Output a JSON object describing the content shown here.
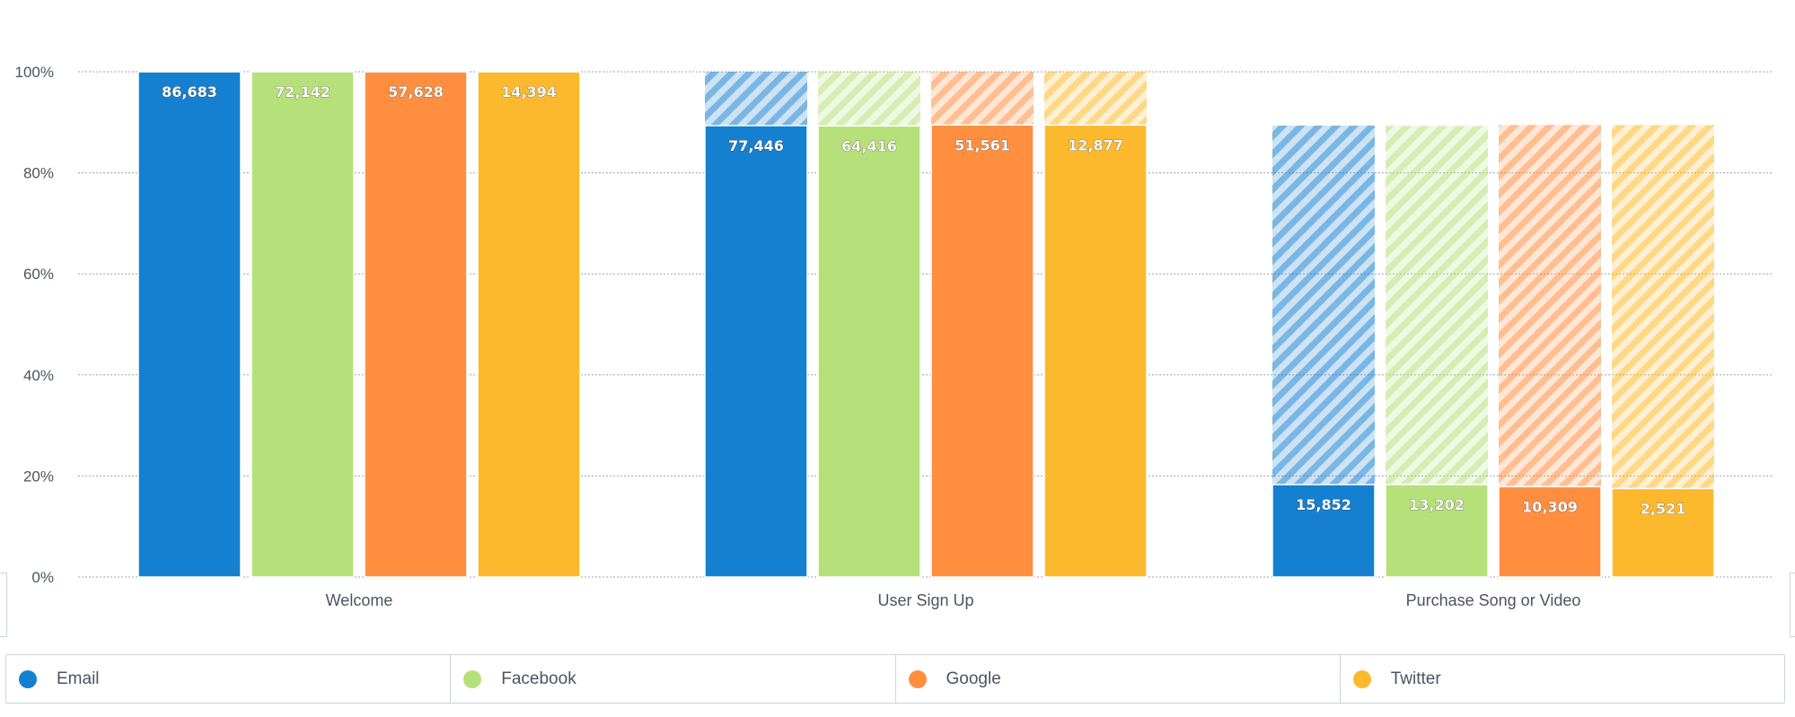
{
  "chart_data": {
    "type": "bar",
    "stacked_ghost": true,
    "categories": [
      "Welcome",
      "User Sign Up",
      "Purchase Song or Video"
    ],
    "ylim": [
      0,
      100
    ],
    "yticks": [
      "0%",
      "20%",
      "40%",
      "60%",
      "80%",
      "100%"
    ],
    "grid": true,
    "legend_position": "bottom",
    "series": [
      {
        "name": "Email",
        "color": "#1580d0",
        "counts": [
          86683,
          77446,
          15852
        ],
        "labels": [
          "86,683",
          "77,446",
          "15,852"
        ]
      },
      {
        "name": "Facebook",
        "color": "#b6e07a",
        "counts": [
          72142,
          64416,
          13202
        ],
        "labels": [
          "72,142",
          "64,416",
          "13,202"
        ]
      },
      {
        "name": "Google",
        "color": "#ff8f3f",
        "counts": [
          57628,
          51561,
          10309
        ],
        "labels": [
          "57,628",
          "51,561",
          "10,309"
        ]
      },
      {
        "name": "Twitter",
        "color": "#fdb92e",
        "counts": [
          14394,
          12877,
          2521
        ],
        "labels": [
          "14,394",
          "12,877",
          "2,521"
        ]
      }
    ]
  }
}
